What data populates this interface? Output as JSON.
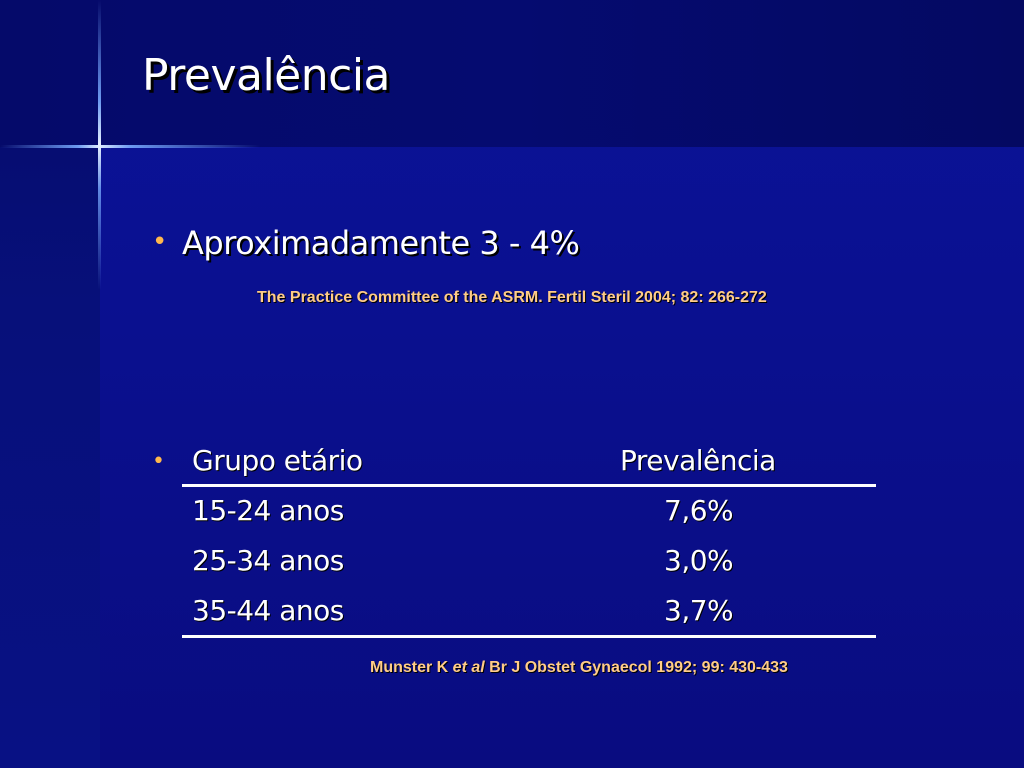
{
  "title": "Prevalência",
  "bullet1": {
    "text": "Aproximadamente 3 - 4%",
    "citation": "The Practice Committee of the ASRM. Fertil Steril 2004; 82: 266-272"
  },
  "table": {
    "headers": [
      "Grupo etário",
      "Prevalência"
    ],
    "rows": [
      [
        "15-24 anos",
        "7,6%"
      ],
      [
        "25-34 anos",
        "3,0%"
      ],
      [
        "35-44 anos",
        "3,7%"
      ]
    ]
  },
  "citation2": {
    "author": "Munster K ",
    "etal": "et al",
    "rest": " Br J Obstet Gynaecol 1992; 99: 430-433"
  },
  "bullet_glyph": "•",
  "colors": {
    "background": "#0a0f8f",
    "text": "#ffffff",
    "citation": "#ffcc88",
    "bullet": "#ffb84d"
  }
}
